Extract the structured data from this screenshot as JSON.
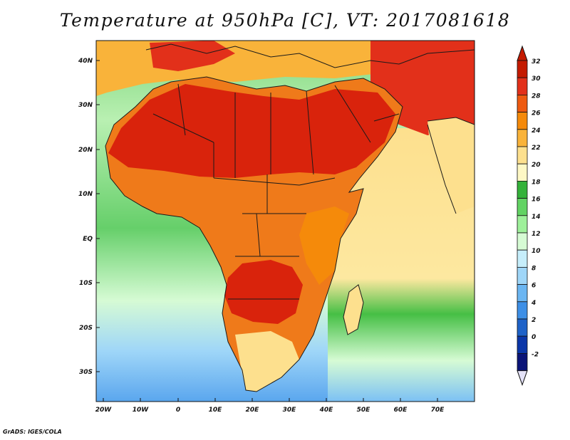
{
  "title": "Temperature at 950hPa [C], VT: 2017081618",
  "credit": "GrADS: IGES/COLA",
  "map": {
    "lat_labels": [
      "40N",
      "30N",
      "20N",
      "10N",
      "EQ",
      "10S",
      "20S",
      "30S"
    ],
    "lon_labels": [
      "20W",
      "10W",
      "0",
      "10E",
      "20E",
      "30E",
      "40E",
      "50E",
      "60E",
      "70E"
    ]
  },
  "colorbar": {
    "labels": [
      "32",
      "30",
      "28",
      "26",
      "24",
      "22",
      "20",
      "18",
      "16",
      "14",
      "12",
      "10",
      "8",
      "6",
      "4",
      "2",
      "0",
      "-2"
    ],
    "colors": [
      "#c41a00",
      "#e2301a",
      "#ee5a10",
      "#f58a0a",
      "#f9b33a",
      "#fde08e",
      "#fef8c5",
      "#34b23a",
      "#62d363",
      "#9ef09a",
      "#d6fbd4",
      "#c6eefb",
      "#9fd6f8",
      "#6bb6f2",
      "#3d8fe6",
      "#1e62c8",
      "#0a36a8",
      "#0a1478"
    ],
    "top_arrow_color": "#c41a00",
    "bottom_arrow_color": "#e4e2f8"
  },
  "colors": {
    "ocean_cold": "#a9d4f8",
    "ocean_cool": "#cdeefc",
    "ocean_mild": "#66cf6a",
    "ocean_warm": "#fde8a0",
    "land_hot": "#d9230c",
    "land_warm": "#ef7a1a",
    "border": "#1a1a1a"
  }
}
